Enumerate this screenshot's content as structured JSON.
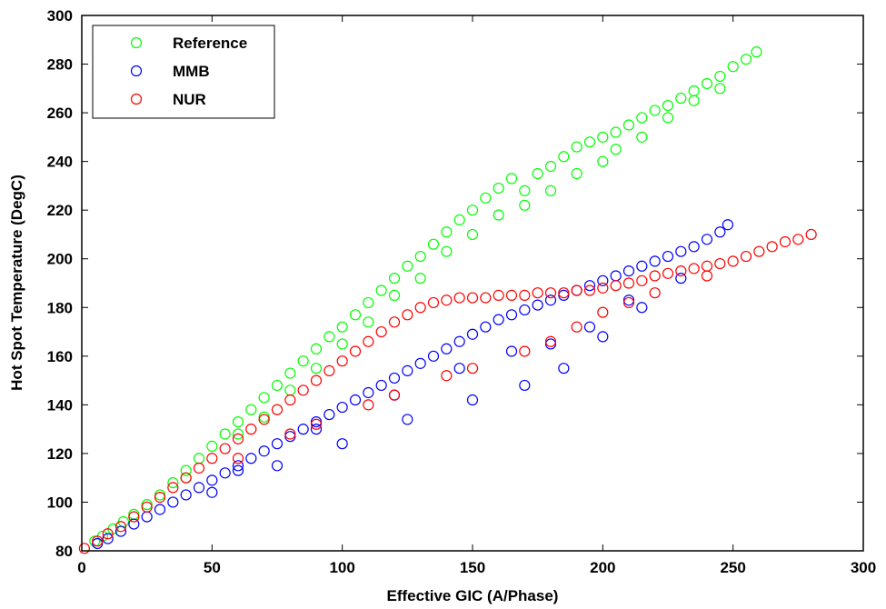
{
  "chart_data": {
    "type": "scatter",
    "title": "",
    "xlabel": "Effective GIC (A/Phase)",
    "ylabel": "Hot Spot Temperature (DegC)",
    "xlim": [
      0,
      300
    ],
    "ylim": [
      80,
      300
    ],
    "xticks": [
      "0",
      "50",
      "100",
      "150",
      "200",
      "250",
      "300"
    ],
    "yticks": [
      "80",
      "100",
      "120",
      "140",
      "160",
      "180",
      "200",
      "220",
      "240",
      "260",
      "280",
      "300"
    ],
    "grid": false,
    "legend_position": "top-left",
    "marker": "circle-open",
    "series": [
      {
        "name": "Reference",
        "color": "#00ff00",
        "points": [
          [
            5,
            84
          ],
          [
            8,
            86
          ],
          [
            12,
            89
          ],
          [
            16,
            92
          ],
          [
            20,
            95
          ],
          [
            25,
            99
          ],
          [
            30,
            103
          ],
          [
            35,
            108
          ],
          [
            40,
            113
          ],
          [
            45,
            118
          ],
          [
            50,
            123
          ],
          [
            55,
            128
          ],
          [
            60,
            133
          ],
          [
            65,
            138
          ],
          [
            70,
            143
          ],
          [
            75,
            148
          ],
          [
            80,
            153
          ],
          [
            85,
            158
          ],
          [
            90,
            163
          ],
          [
            95,
            168
          ],
          [
            100,
            172
          ],
          [
            105,
            177
          ],
          [
            110,
            182
          ],
          [
            115,
            187
          ],
          [
            120,
            192
          ],
          [
            125,
            197
          ],
          [
            130,
            201
          ],
          [
            135,
            206
          ],
          [
            140,
            211
          ],
          [
            145,
            216
          ],
          [
            150,
            220
          ],
          [
            155,
            225
          ],
          [
            160,
            229
          ],
          [
            165,
            233
          ],
          [
            170,
            228
          ],
          [
            175,
            235
          ],
          [
            180,
            238
          ],
          [
            185,
            242
          ],
          [
            190,
            246
          ],
          [
            195,
            248
          ],
          [
            200,
            250
          ],
          [
            205,
            252
          ],
          [
            210,
            255
          ],
          [
            215,
            258
          ],
          [
            220,
            261
          ],
          [
            225,
            263
          ],
          [
            230,
            266
          ],
          [
            235,
            269
          ],
          [
            240,
            272
          ],
          [
            245,
            275
          ],
          [
            250,
            279
          ],
          [
            255,
            282
          ],
          [
            259,
            285
          ],
          [
            40,
            110
          ],
          [
            60,
            128
          ],
          [
            80,
            146
          ],
          [
            100,
            165
          ],
          [
            120,
            185
          ],
          [
            140,
            203
          ],
          [
            160,
            218
          ],
          [
            180,
            228
          ],
          [
            200,
            240
          ],
          [
            215,
            250
          ],
          [
            225,
            258
          ],
          [
            235,
            265
          ],
          [
            245,
            270
          ],
          [
            70,
            135
          ],
          [
            90,
            155
          ],
          [
            110,
            174
          ],
          [
            130,
            192
          ],
          [
            150,
            210
          ],
          [
            170,
            222
          ],
          [
            190,
            235
          ],
          [
            205,
            245
          ]
        ]
      },
      {
        "name": "MMB",
        "color": "#0000ff",
        "points": [
          [
            6,
            83
          ],
          [
            10,
            85
          ],
          [
            15,
            88
          ],
          [
            20,
            91
          ],
          [
            25,
            94
          ],
          [
            30,
            97
          ],
          [
            35,
            100
          ],
          [
            40,
            103
          ],
          [
            45,
            106
          ],
          [
            50,
            109
          ],
          [
            55,
            112
          ],
          [
            60,
            115
          ],
          [
            65,
            118
          ],
          [
            70,
            121
          ],
          [
            75,
            124
          ],
          [
            80,
            127
          ],
          [
            85,
            130
          ],
          [
            90,
            133
          ],
          [
            95,
            136
          ],
          [
            100,
            139
          ],
          [
            105,
            142
          ],
          [
            110,
            145
          ],
          [
            115,
            148
          ],
          [
            120,
            151
          ],
          [
            125,
            154
          ],
          [
            130,
            157
          ],
          [
            135,
            160
          ],
          [
            140,
            163
          ],
          [
            145,
            166
          ],
          [
            150,
            169
          ],
          [
            155,
            172
          ],
          [
            160,
            175
          ],
          [
            165,
            177
          ],
          [
            170,
            179
          ],
          [
            175,
            181
          ],
          [
            180,
            183
          ],
          [
            185,
            185
          ],
          [
            190,
            187
          ],
          [
            195,
            189
          ],
          [
            200,
            191
          ],
          [
            205,
            193
          ],
          [
            210,
            195
          ],
          [
            215,
            197
          ],
          [
            220,
            199
          ],
          [
            225,
            201
          ],
          [
            230,
            203
          ],
          [
            235,
            205
          ],
          [
            240,
            208
          ],
          [
            245,
            211
          ],
          [
            248,
            214
          ],
          [
            50,
            104
          ],
          [
            75,
            115
          ],
          [
            100,
            124
          ],
          [
            125,
            134
          ],
          [
            150,
            142
          ],
          [
            170,
            148
          ],
          [
            185,
            155
          ],
          [
            200,
            168
          ],
          [
            215,
            180
          ],
          [
            230,
            192
          ],
          [
            60,
            113
          ],
          [
            90,
            130
          ],
          [
            120,
            144
          ],
          [
            145,
            155
          ],
          [
            165,
            162
          ],
          [
            180,
            165
          ],
          [
            195,
            172
          ],
          [
            210,
            183
          ]
        ]
      },
      {
        "name": "NUR",
        "color": "#ff0000",
        "points": [
          [
            1,
            81
          ],
          [
            6,
            84
          ],
          [
            10,
            87
          ],
          [
            15,
            90
          ],
          [
            20,
            94
          ],
          [
            25,
            98
          ],
          [
            30,
            102
          ],
          [
            35,
            106
          ],
          [
            40,
            110
          ],
          [
            45,
            114
          ],
          [
            50,
            118
          ],
          [
            55,
            122
          ],
          [
            60,
            126
          ],
          [
            65,
            130
          ],
          [
            70,
            134
          ],
          [
            75,
            138
          ],
          [
            80,
            142
          ],
          [
            85,
            146
          ],
          [
            90,
            150
          ],
          [
            95,
            154
          ],
          [
            100,
            158
          ],
          [
            105,
            162
          ],
          [
            110,
            166
          ],
          [
            115,
            170
          ],
          [
            120,
            174
          ],
          [
            125,
            177
          ],
          [
            130,
            180
          ],
          [
            135,
            182
          ],
          [
            140,
            183
          ],
          [
            145,
            184
          ],
          [
            150,
            184
          ],
          [
            155,
            184
          ],
          [
            160,
            185
          ],
          [
            165,
            185
          ],
          [
            170,
            185
          ],
          [
            175,
            186
          ],
          [
            180,
            186
          ],
          [
            185,
            186
          ],
          [
            190,
            187
          ],
          [
            195,
            187
          ],
          [
            200,
            188
          ],
          [
            205,
            189
          ],
          [
            210,
            190
          ],
          [
            215,
            191
          ],
          [
            220,
            193
          ],
          [
            225,
            194
          ],
          [
            230,
            195
          ],
          [
            235,
            196
          ],
          [
            240,
            197
          ],
          [
            245,
            198
          ],
          [
            250,
            199
          ],
          [
            255,
            201
          ],
          [
            260,
            203
          ],
          [
            265,
            205
          ],
          [
            270,
            207
          ],
          [
            275,
            208
          ],
          [
            280,
            210
          ],
          [
            60,
            118
          ],
          [
            90,
            132
          ],
          [
            120,
            144
          ],
          [
            150,
            155
          ],
          [
            180,
            166
          ],
          [
            200,
            178
          ],
          [
            220,
            186
          ],
          [
            240,
            193
          ],
          [
            80,
            128
          ],
          [
            110,
            140
          ],
          [
            140,
            152
          ],
          [
            170,
            162
          ],
          [
            190,
            172
          ],
          [
            210,
            182
          ]
        ]
      }
    ]
  }
}
